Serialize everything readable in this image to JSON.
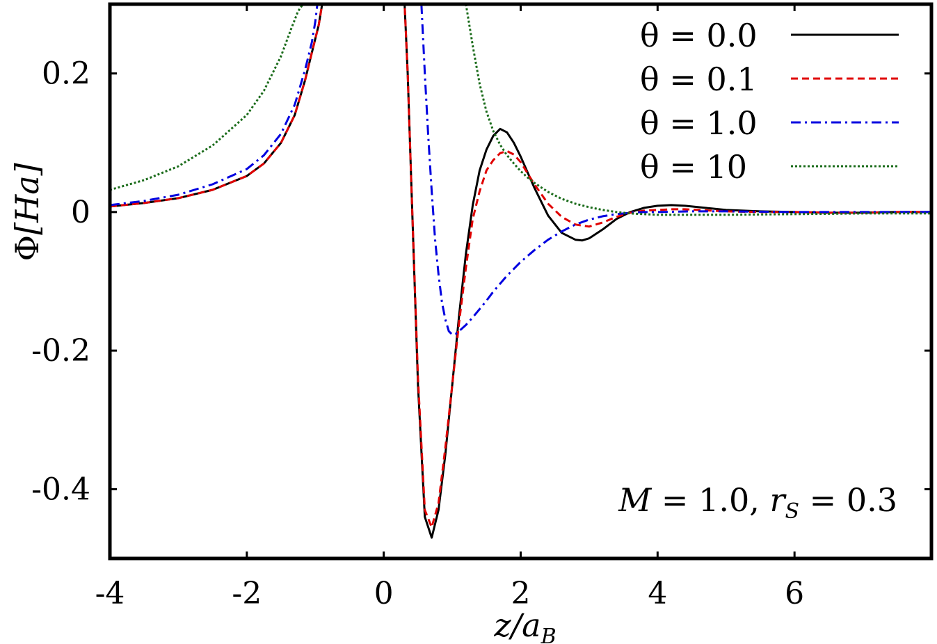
{
  "chart_data": {
    "type": "line",
    "xlabel": "z/a_B",
    "ylabel": "Φ[Ha]",
    "xlim": [
      -4,
      8
    ],
    "ylim": [
      -0.5,
      0.3
    ],
    "xticks": [
      -4,
      -2,
      0,
      2,
      4,
      6
    ],
    "xtick_labels": [
      "-4",
      "-2",
      "0",
      "2",
      "4",
      "6"
    ],
    "yticks": [
      -0.4,
      -0.2,
      0,
      0.2
    ],
    "ytick_labels": [
      "-0.4",
      "-0.2",
      "0",
      "0.2"
    ],
    "grid": false,
    "legend_position": "top-right",
    "annotation": "M = 1.0, r_S = 0.3",
    "series": [
      {
        "name": "θ = 0.0",
        "color": "#000000",
        "dash": "solid",
        "x": [
          -4,
          -3.5,
          -3,
          -2.5,
          -2,
          -1.75,
          -1.5,
          -1.3,
          -1.15,
          -1.05,
          -0.95,
          -0.9,
          -0.88,
          null,
          0.3,
          0.35,
          0.4,
          0.5,
          0.6,
          0.7,
          0.8,
          0.9,
          1.0,
          1.1,
          1.2,
          1.3,
          1.4,
          1.5,
          1.6,
          1.7,
          1.8,
          1.9,
          2.0,
          2.2,
          2.4,
          2.6,
          2.8,
          2.9,
          3.0,
          3.2,
          3.4,
          3.6,
          3.8,
          4.0,
          4.2,
          4.4,
          4.6,
          4.8,
          5.0,
          5.5,
          6.0,
          6.5,
          7.0,
          7.5,
          8.0
        ],
        "y": [
          0.008,
          0.013,
          0.02,
          0.032,
          0.052,
          0.07,
          0.1,
          0.14,
          0.19,
          0.23,
          0.27,
          0.3,
          0.31,
          null,
          0.31,
          0.2,
          0.05,
          -0.25,
          -0.44,
          -0.47,
          -0.43,
          -0.35,
          -0.25,
          -0.15,
          -0.06,
          0.01,
          0.06,
          0.09,
          0.11,
          0.12,
          0.115,
          0.1,
          0.08,
          0.035,
          -0.005,
          -0.03,
          -0.04,
          -0.041,
          -0.038,
          -0.025,
          -0.01,
          0.0,
          0.006,
          0.009,
          0.01,
          0.009,
          0.007,
          0.005,
          0.003,
          0.001,
          0.0,
          -0.001,
          -0.001,
          0.0,
          0.0
        ]
      },
      {
        "name": "θ = 0.1",
        "color": "#e00000",
        "dash": "dashed",
        "x": [
          -4,
          -3.5,
          -3,
          -2.5,
          -2,
          -1.75,
          -1.5,
          -1.3,
          -1.15,
          -1.05,
          -0.95,
          -0.9,
          -0.88,
          null,
          0.3,
          0.35,
          0.4,
          0.5,
          0.6,
          0.7,
          0.8,
          0.9,
          1.0,
          1.1,
          1.2,
          1.3,
          1.4,
          1.5,
          1.6,
          1.7,
          1.8,
          1.9,
          2.0,
          2.2,
          2.4,
          2.6,
          2.8,
          3.0,
          3.2,
          3.4,
          3.6,
          3.8,
          4.0,
          4.2,
          4.4,
          4.6,
          4.8,
          5.0,
          5.5,
          6.0,
          6.5,
          7.0,
          7.5,
          8.0
        ],
        "y": [
          0.008,
          0.013,
          0.02,
          0.032,
          0.052,
          0.07,
          0.1,
          0.14,
          0.19,
          0.23,
          0.27,
          0.3,
          0.31,
          null,
          0.31,
          0.2,
          0.05,
          -0.24,
          -0.43,
          -0.455,
          -0.42,
          -0.34,
          -0.25,
          -0.16,
          -0.08,
          -0.01,
          0.03,
          0.06,
          0.075,
          0.085,
          0.088,
          0.083,
          0.072,
          0.04,
          0.012,
          -0.007,
          -0.018,
          -0.021,
          -0.015,
          -0.007,
          -0.001,
          0.002,
          0.003,
          0.004,
          0.004,
          0.003,
          0.002,
          0.001,
          0.0,
          0.0,
          -0.001,
          -0.001,
          0.0,
          0.0
        ]
      },
      {
        "name": "θ = 1.0",
        "color": "#0000e0",
        "dash": "dashdot",
        "x": [
          -4,
          -3.5,
          -3,
          -2.5,
          -2,
          -1.75,
          -1.5,
          -1.3,
          -1.15,
          -1.05,
          -1.0,
          -0.97,
          null,
          0.55,
          0.6,
          0.65,
          0.7,
          0.75,
          0.8,
          0.85,
          0.9,
          0.95,
          1.0,
          1.05,
          1.1,
          1.2,
          1.3,
          1.4,
          1.5,
          1.6,
          1.8,
          2.0,
          2.2,
          2.4,
          2.6,
          2.8,
          3.0,
          3.2,
          3.4,
          3.6,
          3.8,
          4.0,
          4.5,
          5.0,
          6.0,
          7.0,
          8.0
        ],
        "y": [
          0.01,
          0.016,
          0.025,
          0.04,
          0.062,
          0.082,
          0.113,
          0.155,
          0.205,
          0.245,
          0.275,
          0.3,
          null,
          0.3,
          0.2,
          0.11,
          0.03,
          -0.04,
          -0.09,
          -0.13,
          -0.155,
          -0.172,
          -0.177,
          -0.176,
          -0.172,
          -0.163,
          -0.152,
          -0.14,
          -0.128,
          -0.115,
          -0.092,
          -0.072,
          -0.055,
          -0.04,
          -0.028,
          -0.018,
          -0.011,
          -0.006,
          -0.003,
          -0.001,
          0.0,
          0.0,
          0.001,
          0.001,
          0.0,
          0.0,
          0.0
        ]
      },
      {
        "name": "θ = 10",
        "color": "#1a6b1a",
        "dash": "dotted",
        "x": [
          -4,
          -3.5,
          -3,
          -2.5,
          -2,
          -1.75,
          -1.5,
          -1.35,
          -1.25,
          -1.18,
          null,
          1.2,
          1.3,
          1.4,
          1.5,
          1.6,
          1.7,
          1.8,
          1.9,
          2.0,
          2.1,
          2.2,
          2.4,
          2.6,
          2.8,
          3.0,
          3.2,
          3.4,
          3.6,
          3.8,
          4.0,
          4.5,
          5.0,
          6.0,
          7.0,
          8.0
        ],
        "y": [
          0.032,
          0.046,
          0.066,
          0.096,
          0.14,
          0.175,
          0.225,
          0.265,
          0.29,
          0.3,
          null,
          0.3,
          0.24,
          0.185,
          0.145,
          0.117,
          0.097,
          0.082,
          0.07,
          0.059,
          0.05,
          0.042,
          0.029,
          0.019,
          0.012,
          0.007,
          0.003,
          0.0,
          -0.002,
          -0.003,
          -0.004,
          -0.004,
          -0.004,
          -0.003,
          -0.002,
          -0.002
        ]
      }
    ]
  }
}
